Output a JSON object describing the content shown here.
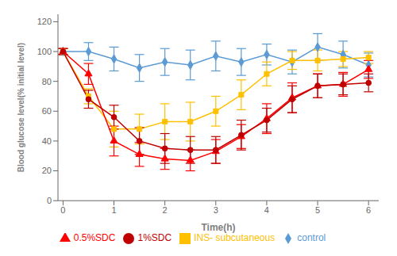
{
  "chart_data": {
    "type": "line",
    "xlabel": "Time(h)",
    "ylabel": "Blood glucose level(% initial level)",
    "x": [
      0,
      0.5,
      1,
      1.5,
      2,
      2.5,
      3,
      3.5,
      4,
      4.5,
      5,
      5.5,
      6
    ],
    "series": [
      {
        "name": "control",
        "color": "#5b9bd5",
        "marker": "diamond",
        "values": [
          100,
          100,
          95,
          89,
          93,
          91,
          97,
          93,
          98,
          93,
          103,
          98,
          91
        ],
        "yerr": [
          2,
          6,
          8,
          9,
          9,
          10,
          10,
          9,
          7,
          8,
          9,
          9,
          8
        ]
      },
      {
        "name": "INS- subcutaneous",
        "color": "#ffc000",
        "marker": "square",
        "values": [
          100,
          70,
          48,
          48,
          53,
          53,
          60,
          71,
          85,
          94,
          94,
          95,
          96
        ],
        "yerr": [
          2,
          5,
          12,
          10,
          12,
          13,
          10,
          10,
          8,
          6,
          7,
          5,
          4
        ]
      },
      {
        "name": "0.5%SDC",
        "color": "#ff0000",
        "marker": "triangle",
        "values": [
          100,
          85,
          40,
          31,
          28,
          27,
          33,
          43,
          55,
          69,
          77,
          78,
          88
        ],
        "yerr": [
          2,
          7,
          10,
          8,
          7,
          7,
          8,
          8,
          10,
          10,
          8,
          8,
          6
        ]
      },
      {
        "name": "1%SDC",
        "color": "#c00000",
        "marker": "circle",
        "values": [
          100,
          68,
          56,
          40,
          35,
          34,
          34,
          44,
          54,
          68,
          77,
          78,
          79
        ],
        "yerr": [
          2,
          6,
          8,
          9,
          10,
          9,
          9,
          10,
          8,
          9,
          8,
          7,
          6
        ]
      }
    ],
    "xlim": [
      -0.1,
      6.2
    ],
    "xticks": [
      0,
      1,
      2,
      3,
      4,
      5,
      6
    ],
    "ylim": [
      0,
      125
    ],
    "yticks": [
      0,
      20,
      40,
      60,
      80,
      100,
      120
    ],
    "grid": false,
    "legend": "bottom"
  }
}
